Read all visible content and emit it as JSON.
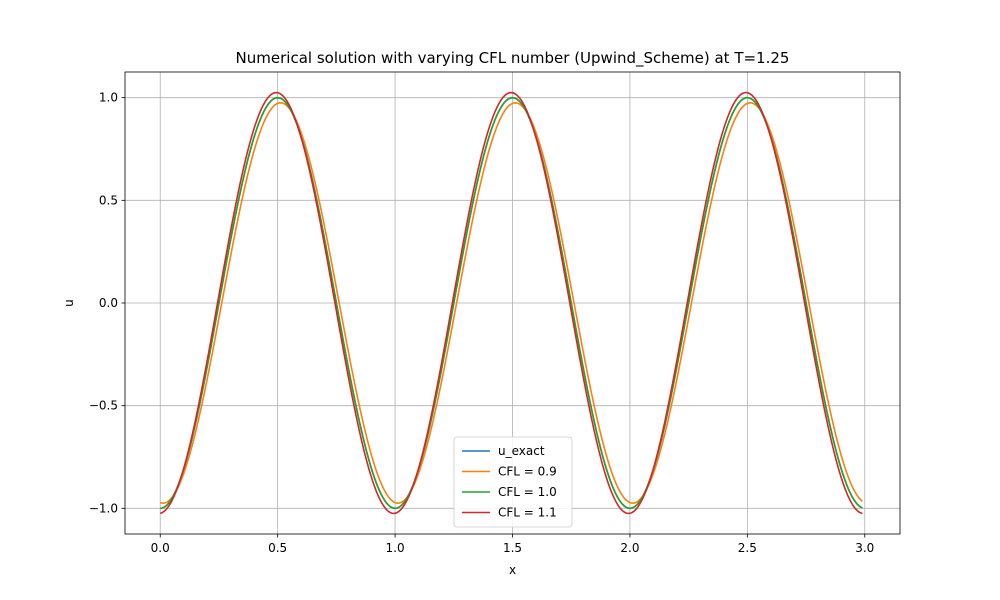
{
  "chart_data": {
    "type": "line",
    "title": "Numerical solution with varying CFL number (Upwind_Scheme) at T=1.25",
    "xlabel": "x",
    "ylabel": "u",
    "xlim": [
      -0.15,
      3.15
    ],
    "ylim": [
      -1.125,
      1.125
    ],
    "xticks": [
      0.0,
      0.5,
      1.0,
      1.5,
      2.0,
      2.5,
      3.0
    ],
    "xtick_labels": [
      "0.0",
      "0.5",
      "1.0",
      "1.5",
      "2.0",
      "2.5",
      "3.0"
    ],
    "yticks": [
      -1.0,
      -0.5,
      0.0,
      0.5,
      1.0
    ],
    "ytick_labels": [
      "−1.0",
      "−0.5",
      "0.0",
      "0.5",
      "1.0"
    ],
    "grid": true,
    "legend_position": "lower-center",
    "x_range": [
      0.0,
      2.99
    ],
    "series": [
      {
        "name": "u_exact",
        "color": "#1f77b4",
        "amplitude": 1.0,
        "phase": 0.0
      },
      {
        "name": "CFL = 0.9",
        "color": "#ff7f0e",
        "amplitude": 0.975,
        "phase": 0.012
      },
      {
        "name": "CFL = 1.0",
        "color": "#2ca02c",
        "amplitude": 1.0,
        "phase": 0.0
      },
      {
        "name": "CFL = 1.1",
        "color": "#d62728",
        "amplitude": 1.025,
        "phase": -0.006
      }
    ]
  }
}
